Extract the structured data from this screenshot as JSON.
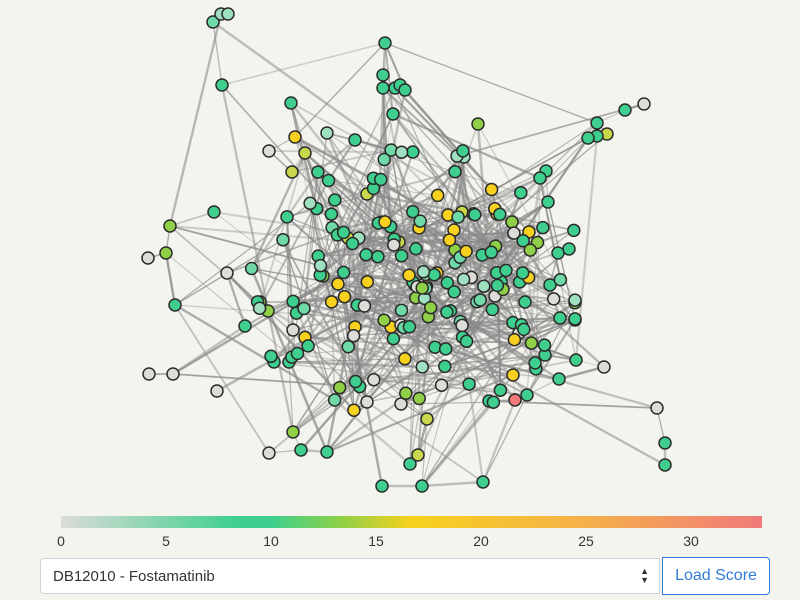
{
  "legend": {
    "ticks": [
      "0",
      "5",
      "10",
      "15",
      "20",
      "25",
      "30"
    ],
    "colors": {
      "low": "#dcdcd8",
      "mid": "#3ecf8e",
      "green_yellow": "#8fd047",
      "yellow": "#f7d11e",
      "orange": "#f5b04a",
      "high": "#f07a7a"
    }
  },
  "drug_select": {
    "selected": "DB12010 - Fostamatinib",
    "caret_icon": "select-updown-icon"
  },
  "load_score_button": {
    "label": "Load Score"
  },
  "network": {
    "edge_color": "#8a8a8a",
    "node_stroke": "#2b2b2b"
  }
}
